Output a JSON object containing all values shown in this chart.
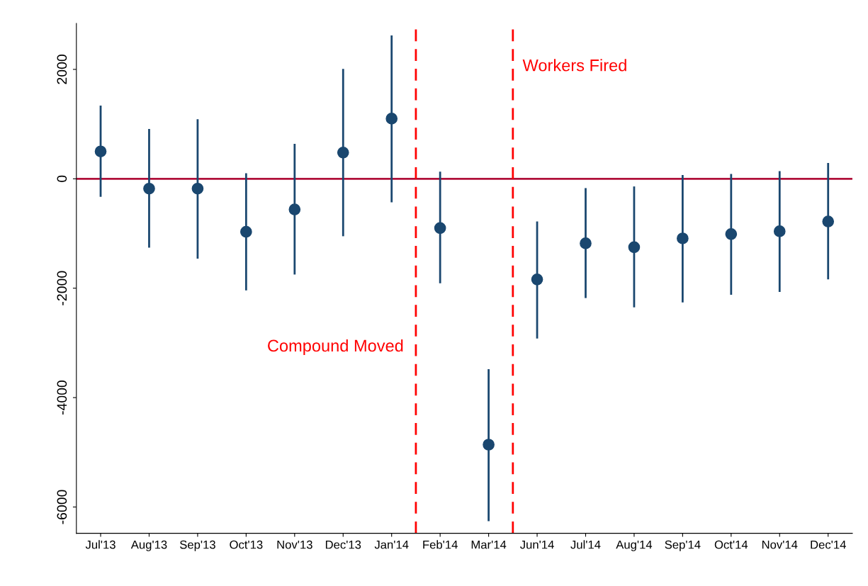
{
  "chart_data": {
    "type": "scatter",
    "categories": [
      "Jul'13",
      "Aug'13",
      "Sep'13",
      "Oct'13",
      "Nov'13",
      "Dec'13",
      "Jan'14",
      "Feb'14",
      "Mar'14",
      "Jun'14",
      "Jul'14",
      "Aug'14",
      "Sep'14",
      "Oct'14",
      "Nov'14",
      "Dec'14"
    ],
    "series": [
      {
        "color": "#1a476f",
        "values": [
          500,
          -180,
          -180,
          -970,
          -560,
          480,
          1100,
          -900,
          -4860,
          -1840,
          -1180,
          -1250,
          -1090,
          -1010,
          -960,
          -780
        ],
        "errors": [
          [
            -330,
            1340
          ],
          [
            -1260,
            910
          ],
          [
            -1460,
            1090
          ],
          [
            -2040,
            100
          ],
          [
            -1750,
            640
          ],
          [
            -1050,
            2010
          ],
          [
            -430,
            2620
          ],
          [
            -1910,
            130
          ],
          [
            -6260,
            -3480
          ],
          [
            -2920,
            -780
          ],
          [
            -2180,
            -170
          ],
          [
            -2350,
            -140
          ],
          [
            -2260,
            70
          ],
          [
            -2120,
            90
          ],
          [
            -2070,
            140
          ],
          [
            -1840,
            290
          ]
        ]
      }
    ],
    "ylim": [
      -6480,
      2840
    ],
    "yticks": [
      -6000,
      -4000,
      -2000,
      0,
      2000
    ],
    "marker": "circle",
    "grid": false,
    "annotations": [
      "Compound Moved",
      "Workers Fired"
    ],
    "ref_lines": [
      {
        "axis": "y",
        "value": 0,
        "color": "#b0103a",
        "line_style": "solid"
      }
    ]
  }
}
